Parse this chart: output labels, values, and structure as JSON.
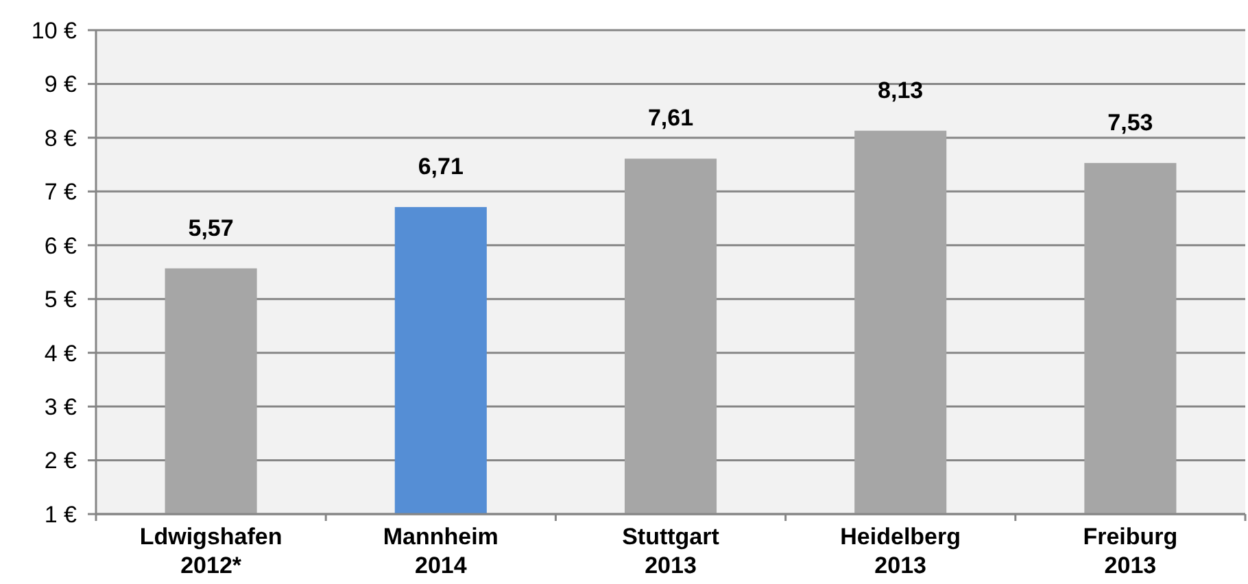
{
  "chart_data": {
    "type": "bar",
    "categories": [
      "Ldwigshafen\n2012*",
      "Mannheim\n2014",
      "Stuttgart\n2013",
      "Heidelberg\n2013",
      "Freiburg\n2013"
    ],
    "values": [
      5.57,
      6.71,
      7.61,
      8.13,
      7.53
    ],
    "colors": [
      "#a6a6a6",
      "#558ed5",
      "#a6a6a6",
      "#a6a6a6",
      "#a6a6a6"
    ],
    "value_labels": [
      "5,57",
      "6,71",
      "7,61",
      "8,13",
      "7,53"
    ],
    "ylim": [
      1,
      10
    ],
    "yticks": [
      {
        "value": 1,
        "label": "1 €"
      },
      {
        "value": 2,
        "label": "2 €"
      },
      {
        "value": 3,
        "label": "3 €"
      },
      {
        "value": 4,
        "label": "4 €"
      },
      {
        "value": 5,
        "label": "5 €"
      },
      {
        "value": 6,
        "label": "6 €"
      },
      {
        "value": 7,
        "label": "7 €"
      },
      {
        "value": 8,
        "label": "8 €"
      },
      {
        "value": 9,
        "label": "9 €"
      },
      {
        "value": 10,
        "label": "10 €"
      }
    ],
    "grid": "y"
  }
}
